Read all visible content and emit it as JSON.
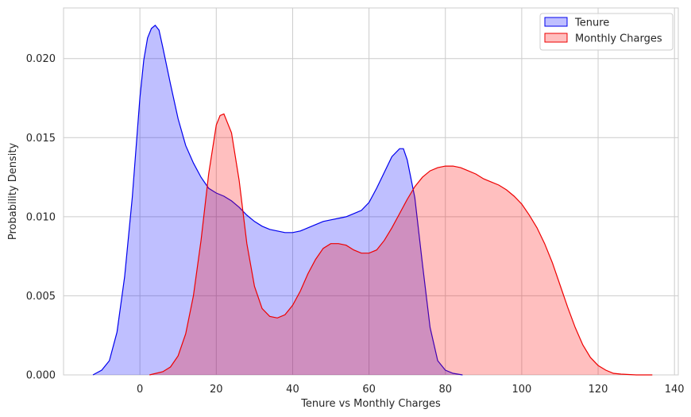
{
  "chart_data": {
    "type": "area",
    "title": "",
    "xlabel": "Tenure vs Monthly Charges",
    "ylabel": "Probability Density",
    "xlim": [
      -20,
      141
    ],
    "ylim": [
      0,
      0.0232
    ],
    "grid": true,
    "legend_position": "top-right",
    "x_ticks": [
      {
        "value": 0,
        "label": "0"
      },
      {
        "value": 20,
        "label": "20"
      },
      {
        "value": 40,
        "label": "40"
      },
      {
        "value": 60,
        "label": "60"
      },
      {
        "value": 80,
        "label": "80"
      },
      {
        "value": 100,
        "label": "100"
      },
      {
        "value": 120,
        "label": "120"
      },
      {
        "value": 140,
        "label": "140"
      }
    ],
    "y_ticks": [
      {
        "value": 0,
        "label": "0.000"
      },
      {
        "value": 0.005,
        "label": "0.005"
      },
      {
        "value": 0.01,
        "label": "0.010"
      },
      {
        "value": 0.015,
        "label": "0.015"
      },
      {
        "value": 0.02,
        "label": "0.020"
      }
    ],
    "series": [
      {
        "name": "Tenure",
        "line_color": "#0000ee",
        "fill_color": "#0000ff",
        "fill_opacity": 0.25,
        "x": [
          -12.3,
          -10,
          -8,
          -6,
          -4,
          -2,
          0,
          1,
          2,
          3,
          4,
          5,
          6,
          8,
          10,
          12,
          14,
          16,
          18,
          20,
          22,
          24,
          26,
          28,
          30,
          32,
          34,
          36,
          38,
          40,
          42,
          44,
          46,
          48,
          50,
          52,
          54,
          56,
          58,
          60,
          62,
          64,
          66,
          68,
          69,
          70,
          72,
          74,
          76,
          78,
          80,
          82,
          84.5
        ],
        "y": [
          0.0,
          0.0003,
          0.0009,
          0.0027,
          0.0062,
          0.0112,
          0.0175,
          0.0199,
          0.0213,
          0.0219,
          0.0221,
          0.0218,
          0.0207,
          0.0184,
          0.0162,
          0.0145,
          0.0134,
          0.0125,
          0.0118,
          0.0115,
          0.0113,
          0.011,
          0.0106,
          0.0101,
          0.0097,
          0.0094,
          0.0092,
          0.0091,
          0.009,
          0.009,
          0.0091,
          0.0093,
          0.0095,
          0.0097,
          0.0098,
          0.0099,
          0.01,
          0.0102,
          0.0104,
          0.0109,
          0.0118,
          0.0128,
          0.0138,
          0.0143,
          0.0143,
          0.0136,
          0.0112,
          0.007,
          0.003,
          0.0009,
          0.0003,
          0.0001,
          0.0
        ]
      },
      {
        "name": "Monthly Charges",
        "line_color": "#ee0000",
        "fill_color": "#ff0000",
        "fill_opacity": 0.25,
        "x": [
          2.5,
          6,
          8,
          10,
          12,
          14,
          16,
          18,
          20,
          21,
          22,
          24,
          26,
          28,
          30,
          32,
          34,
          36,
          38,
          40,
          42,
          44,
          46,
          48,
          50,
          52,
          54,
          56,
          58,
          60,
          62,
          64,
          66,
          68,
          70,
          72,
          74,
          76,
          78,
          80,
          82,
          84,
          86,
          88,
          90,
          92,
          94,
          96,
          98,
          100,
          102,
          104,
          106,
          108,
          110,
          112,
          114,
          116,
          118,
          120,
          122,
          124,
          126,
          130,
          134.2
        ],
        "y": [
          0.0,
          0.0002,
          0.0005,
          0.0012,
          0.0026,
          0.005,
          0.0085,
          0.0127,
          0.0158,
          0.0164,
          0.0165,
          0.0153,
          0.0123,
          0.0083,
          0.0056,
          0.0042,
          0.0037,
          0.0036,
          0.0038,
          0.0044,
          0.0053,
          0.0064,
          0.0073,
          0.008,
          0.0083,
          0.0083,
          0.0082,
          0.0079,
          0.0077,
          0.0077,
          0.0079,
          0.0085,
          0.0093,
          0.0102,
          0.0111,
          0.0119,
          0.0125,
          0.0129,
          0.0131,
          0.0132,
          0.0132,
          0.0131,
          0.0129,
          0.0127,
          0.0124,
          0.0122,
          0.012,
          0.0117,
          0.0113,
          0.0108,
          0.0101,
          0.0093,
          0.0083,
          0.0071,
          0.0057,
          0.0043,
          0.003,
          0.0019,
          0.0011,
          0.0006,
          0.0003,
          0.0001,
          5e-05,
          0.0,
          0.0
        ]
      }
    ]
  }
}
